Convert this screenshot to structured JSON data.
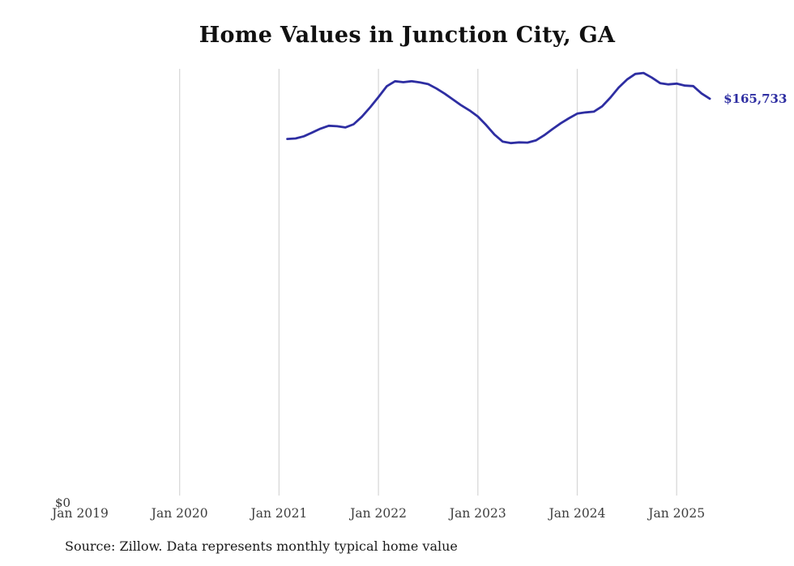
{
  "chart_data": {
    "type": "line",
    "title": "Home Values in Junction City, GA",
    "source": "Source: Zillow. Data represents monthly typical home value",
    "y_zero_label": "$0",
    "end_label": "$165,733",
    "end_value": 165733,
    "line_color": "#2e2ea2",
    "grid_color": "#d8d8d8",
    "ylim": [
      0,
      178000
    ],
    "x_tick_labels": [
      "Jan 2019",
      "Jan 2020",
      "Jan 2021",
      "Jan 2022",
      "Jan 2023",
      "Jan 2024",
      "Jan 2025"
    ],
    "x_tick_years": [
      2019,
      2020,
      2021,
      2022,
      2023,
      2024,
      2025
    ],
    "legend": "none",
    "grid": "vertical-only",
    "series": [
      {
        "name": "Typical home value",
        "start": "2021-02",
        "values": [
          149200,
          149400,
          150300,
          151800,
          153400,
          154600,
          154400,
          153900,
          155200,
          158300,
          162200,
          166400,
          170800,
          172900,
          172500,
          172900,
          172400,
          171700,
          169900,
          167800,
          165400,
          163000,
          160900,
          158400,
          154900,
          151000,
          148100,
          147500,
          147800,
          147700,
          148600,
          150700,
          153200,
          155600,
          157700,
          159600,
          160100,
          160400,
          162600,
          166200,
          170300,
          173600,
          175900,
          176300,
          174400,
          172100,
          171600,
          171900,
          171100,
          170900,
          167900,
          165733
        ]
      }
    ]
  }
}
